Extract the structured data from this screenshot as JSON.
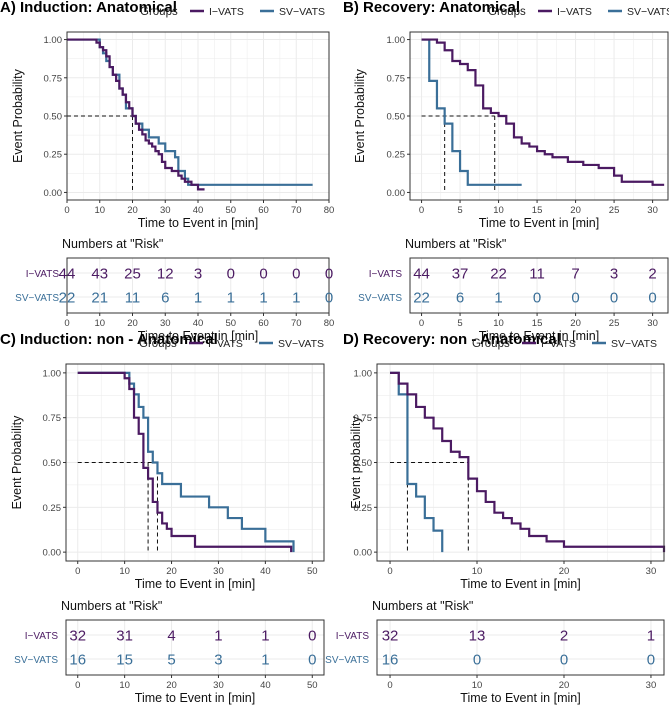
{
  "colors": {
    "ivats": "#4b1a62",
    "svvats": "#3a6f98",
    "grid": "#ebebeb",
    "axis": "#222222"
  },
  "risk_title": "Numbers at \"Risk\"",
  "chart_data": [
    {
      "type": "line",
      "title": "A) Induction: Anatomical",
      "xlabel": "Time to Event in [min]",
      "ylabel": "Event Probability",
      "xlim": [
        0,
        80
      ],
      "ylim": [
        0,
        1
      ],
      "xticks": [
        0,
        10,
        20,
        30,
        40,
        50,
        60,
        70,
        80
      ],
      "yticks": [
        0.0,
        0.25,
        0.5,
        0.75,
        1.0
      ],
      "yticklabels": [
        "0.00",
        "0.25",
        "0.50",
        "0.75",
        "1.00"
      ],
      "legend_title": "Groups",
      "median": [
        20,
        20
      ],
      "series": [
        {
          "name": "I−VATS",
          "x": [
            0,
            8,
            9,
            10,
            11,
            12,
            13,
            14,
            15,
            16,
            17,
            18,
            19,
            20,
            21,
            22,
            23,
            24,
            25,
            26,
            27,
            28,
            29,
            30,
            32,
            34,
            35,
            36,
            38,
            40,
            42
          ],
          "y": [
            1.0,
            1.0,
            0.98,
            0.95,
            0.93,
            0.89,
            0.82,
            0.77,
            0.73,
            0.68,
            0.64,
            0.59,
            0.55,
            0.5,
            0.45,
            0.41,
            0.38,
            0.34,
            0.32,
            0.3,
            0.27,
            0.25,
            0.2,
            0.16,
            0.14,
            0.11,
            0.09,
            0.07,
            0.05,
            0.02,
            0.02
          ]
        },
        {
          "name": "SV−VATS",
          "x": [
            0,
            8,
            10,
            11,
            12,
            13,
            14,
            16,
            17,
            18,
            20,
            21,
            23,
            25,
            28,
            30,
            32,
            33,
            34,
            36,
            37,
            75
          ],
          "y": [
            1.0,
            1.0,
            0.95,
            0.91,
            0.86,
            0.82,
            0.77,
            0.68,
            0.64,
            0.55,
            0.5,
            0.45,
            0.41,
            0.36,
            0.32,
            0.27,
            0.27,
            0.23,
            0.14,
            0.09,
            0.05,
            0.05
          ]
        }
      ],
      "risk": {
        "times": [
          0,
          10,
          20,
          30,
          40,
          50,
          60,
          70,
          80
        ],
        "rows": [
          {
            "label": "I−VATS",
            "values": [
              "44",
              "43",
              "25",
              "12",
              "3",
              "0",
              "0",
              "0",
              "0"
            ]
          },
          {
            "label": "SV−VATS",
            "values": [
              "22",
              "21",
              "11",
              "6",
              "1",
              "1",
              "1",
              "1",
              "0"
            ]
          }
        ]
      }
    },
    {
      "type": "line",
      "title": "B) Recovery: Anatomical",
      "xlabel": "Time to Event in [min]",
      "ylabel": "Event Probability",
      "xlim": [
        -1.5,
        32
      ],
      "ylim": [
        0,
        1
      ],
      "xticks": [
        0,
        5,
        10,
        15,
        20,
        25,
        30
      ],
      "yticks": [
        0.0,
        0.25,
        0.5,
        0.75,
        1.0
      ],
      "yticklabels": [
        "0.00",
        "0.25",
        "0.50",
        "0.75",
        "1.00"
      ],
      "legend_title": "Groups",
      "median": [
        9.5,
        3
      ],
      "series": [
        {
          "name": "I−VATS",
          "x": [
            0,
            2,
            3,
            4,
            5,
            6,
            7,
            8,
            9,
            10,
            11,
            12,
            13,
            14,
            15,
            16,
            17,
            19,
            21,
            23,
            25,
            26,
            27,
            28,
            30,
            31.5
          ],
          "y": [
            1.0,
            0.98,
            0.93,
            0.86,
            0.84,
            0.8,
            0.7,
            0.55,
            0.52,
            0.5,
            0.45,
            0.36,
            0.32,
            0.3,
            0.27,
            0.25,
            0.23,
            0.2,
            0.18,
            0.16,
            0.11,
            0.07,
            0.07,
            0.07,
            0.05,
            0.05
          ]
        },
        {
          "name": "SV−VATS",
          "x": [
            0,
            1,
            2,
            3,
            4,
            5,
            6,
            9,
            13
          ],
          "y": [
            1.0,
            0.73,
            0.55,
            0.45,
            0.27,
            0.14,
            0.05,
            0.05,
            0.05
          ]
        }
      ],
      "risk": {
        "times": [
          0,
          5,
          10,
          15,
          20,
          25,
          30
        ],
        "rows": [
          {
            "label": "I−VATS",
            "values": [
              "44",
              "37",
              "22",
              "11",
              "7",
              "3",
              "2"
            ]
          },
          {
            "label": "SV−VATS",
            "values": [
              "22",
              "6",
              "1",
              "0",
              "0",
              "0",
              "0"
            ]
          }
        ]
      }
    },
    {
      "type": "line",
      "title": "C) Induction: non - Anatomical",
      "xlabel": "Time to Event in [min]",
      "ylabel": "Event Probability",
      "xlim": [
        -2.5,
        52.5
      ],
      "ylim": [
        0,
        1
      ],
      "xticks": [
        0,
        10,
        20,
        30,
        40,
        50
      ],
      "yticks": [
        0.0,
        0.25,
        0.5,
        0.75,
        1.0
      ],
      "yticklabels": [
        "0.00",
        "0.25",
        "0.50",
        "0.75",
        "1.00"
      ],
      "legend_title": "Groups",
      "median": [
        15,
        17
      ],
      "series": [
        {
          "name": "I−VATS",
          "x": [
            0,
            9,
            10,
            11,
            12,
            13,
            14,
            15,
            16,
            17,
            18,
            19,
            20,
            25,
            45.5
          ],
          "y": [
            1.0,
            1.0,
            0.97,
            0.91,
            0.75,
            0.66,
            0.47,
            0.41,
            0.28,
            0.22,
            0.16,
            0.13,
            0.09,
            0.03,
            0.0
          ]
        },
        {
          "name": "SV−VATS",
          "x": [
            0,
            10,
            11,
            12,
            13,
            14,
            15,
            16,
            17,
            18,
            22,
            28,
            32,
            35,
            40,
            45,
            46
          ],
          "y": [
            1.0,
            1.0,
            0.94,
            0.88,
            0.81,
            0.75,
            0.56,
            0.5,
            0.44,
            0.38,
            0.31,
            0.25,
            0.19,
            0.13,
            0.06,
            0.06,
            0.0
          ]
        }
      ],
      "risk": {
        "times": [
          0,
          10,
          20,
          30,
          40,
          50
        ],
        "rows": [
          {
            "label": "I−VATS",
            "values": [
              "32",
              "31",
              "4",
              "1",
              "1",
              "0"
            ]
          },
          {
            "label": "SV−VATS",
            "values": [
              "16",
              "15",
              "5",
              "3",
              "1",
              "0"
            ]
          }
        ]
      }
    },
    {
      "type": "line",
      "title": "D) Recovery: non - Anatomical",
      "xlabel": "Time to Event in [min]",
      "ylabel": "Event probability",
      "xlim": [
        -1.5,
        31.5
      ],
      "ylim": [
        0,
        1
      ],
      "xticks": [
        0,
        10,
        20,
        30
      ],
      "yticks": [
        0.0,
        0.25,
        0.5,
        0.75,
        1.0
      ],
      "yticklabels": [
        "0.00",
        "0.25",
        "0.50",
        "0.75",
        "1.00"
      ],
      "legend_title": "Groups",
      "median": [
        9,
        2
      ],
      "series": [
        {
          "name": "I−VATS",
          "x": [
            0,
            1,
            2,
            3,
            4,
            5,
            6,
            7,
            8,
            9,
            10,
            11,
            12,
            13,
            14,
            15,
            16,
            17,
            18,
            20,
            21,
            31.5
          ],
          "y": [
            1.0,
            0.94,
            0.88,
            0.81,
            0.75,
            0.69,
            0.62,
            0.56,
            0.53,
            0.41,
            0.34,
            0.28,
            0.22,
            0.19,
            0.16,
            0.13,
            0.09,
            0.09,
            0.06,
            0.03,
            0.03,
            0.0
          ]
        },
        {
          "name": "SV−VATS",
          "x": [
            0,
            1,
            2,
            3,
            4,
            5,
            6
          ],
          "y": [
            1.0,
            0.88,
            0.38,
            0.31,
            0.19,
            0.12,
            0.0
          ]
        }
      ],
      "risk": {
        "times": [
          0,
          10,
          20,
          30
        ],
        "rows": [
          {
            "label": "I−VATS",
            "values": [
              "32",
              "13",
              "2",
              "1"
            ]
          },
          {
            "label": "SV−VATS",
            "values": [
              "16",
              "0",
              "0",
              "0"
            ]
          }
        ]
      }
    }
  ]
}
